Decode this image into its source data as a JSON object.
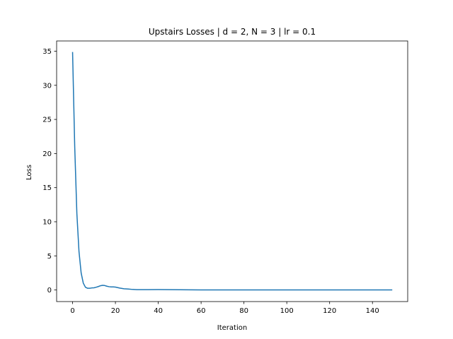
{
  "chart_data": {
    "type": "line",
    "title": "Upstairs Losses | d = 2, N = 3 | lr = 0.1",
    "xlabel": "Iteration",
    "ylabel": "Loss",
    "xlim": [
      -7.45,
      156.45
    ],
    "ylim": [
      -1.7,
      36.5
    ],
    "xticks": [
      0,
      20,
      40,
      60,
      80,
      100,
      120,
      140
    ],
    "yticks": [
      0,
      5,
      10,
      15,
      20,
      25,
      30,
      35
    ],
    "grid": false,
    "legend": "none",
    "series": [
      {
        "color": "#1f77b4",
        "x": [
          0,
          1,
          2,
          3,
          4,
          5,
          6,
          7,
          8,
          9,
          10,
          11,
          12,
          13,
          14,
          15,
          16,
          17,
          18,
          19,
          20,
          22,
          24,
          26,
          28,
          30,
          35,
          40,
          45,
          50,
          55,
          60,
          70,
          80,
          90,
          100,
          110,
          120,
          130,
          140,
          149
        ],
        "y": [
          34.8,
          21.0,
          11.2,
          5.6,
          2.5,
          1.0,
          0.4,
          0.25,
          0.25,
          0.3,
          0.32,
          0.4,
          0.5,
          0.62,
          0.68,
          0.65,
          0.55,
          0.48,
          0.45,
          0.45,
          0.42,
          0.28,
          0.18,
          0.14,
          0.08,
          0.05,
          0.05,
          0.06,
          0.05,
          0.04,
          0.02,
          0.01,
          0.01,
          0.01,
          0.01,
          0.01,
          0.01,
          0.01,
          0.01,
          0.01,
          0.01
        ]
      }
    ]
  }
}
